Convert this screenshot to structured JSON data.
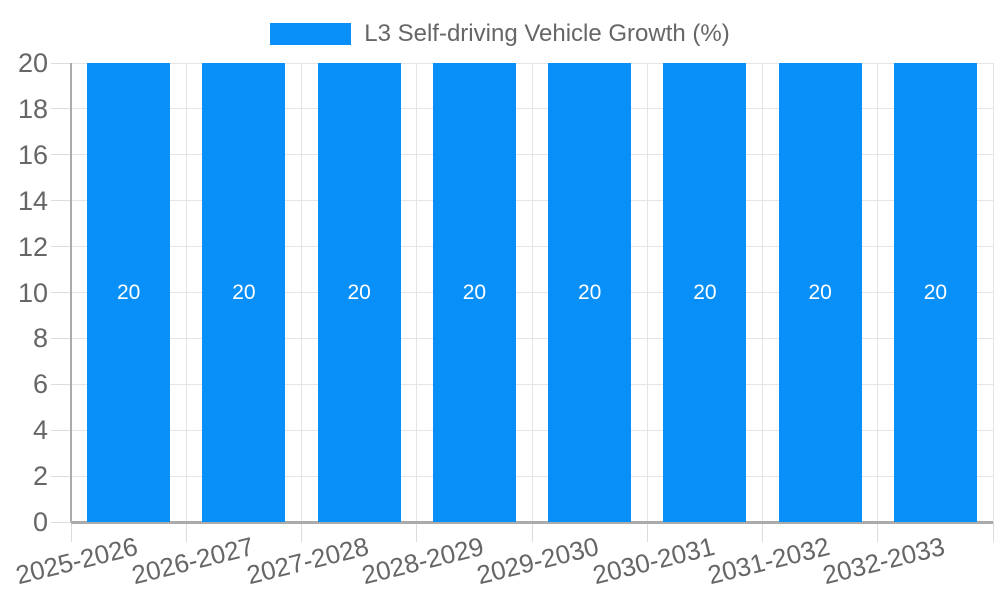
{
  "chart_data": {
    "type": "bar",
    "title": "L3 Self-driving Vehicle Growth (%)",
    "legend_position": "top",
    "categories": [
      "2025-2026",
      "2026-2027",
      "2027-2028",
      "2028-2029",
      "2029-2030",
      "2030-2031",
      "2031-2032",
      "2032-2033"
    ],
    "values": [
      20,
      20,
      20,
      20,
      20,
      20,
      20,
      20
    ],
    "bar_value_labels": [
      "20",
      "20",
      "20",
      "20",
      "20",
      "20",
      "20",
      "20"
    ],
    "xlabel": "",
    "ylabel": "",
    "ylim": [
      0,
      20
    ],
    "yticks": [
      0,
      2,
      4,
      6,
      8,
      10,
      12,
      14,
      16,
      18,
      20
    ],
    "grid": true,
    "x_label_rotation_deg": -14,
    "colors": {
      "bar": "#0890f8",
      "bar_label": "#ffffff",
      "tick_text": "#666666",
      "gridline": "#e5e5e5",
      "tick_mark": "#dcdcdc",
      "axis_line": "#ababab",
      "background": "#ffffff"
    }
  }
}
